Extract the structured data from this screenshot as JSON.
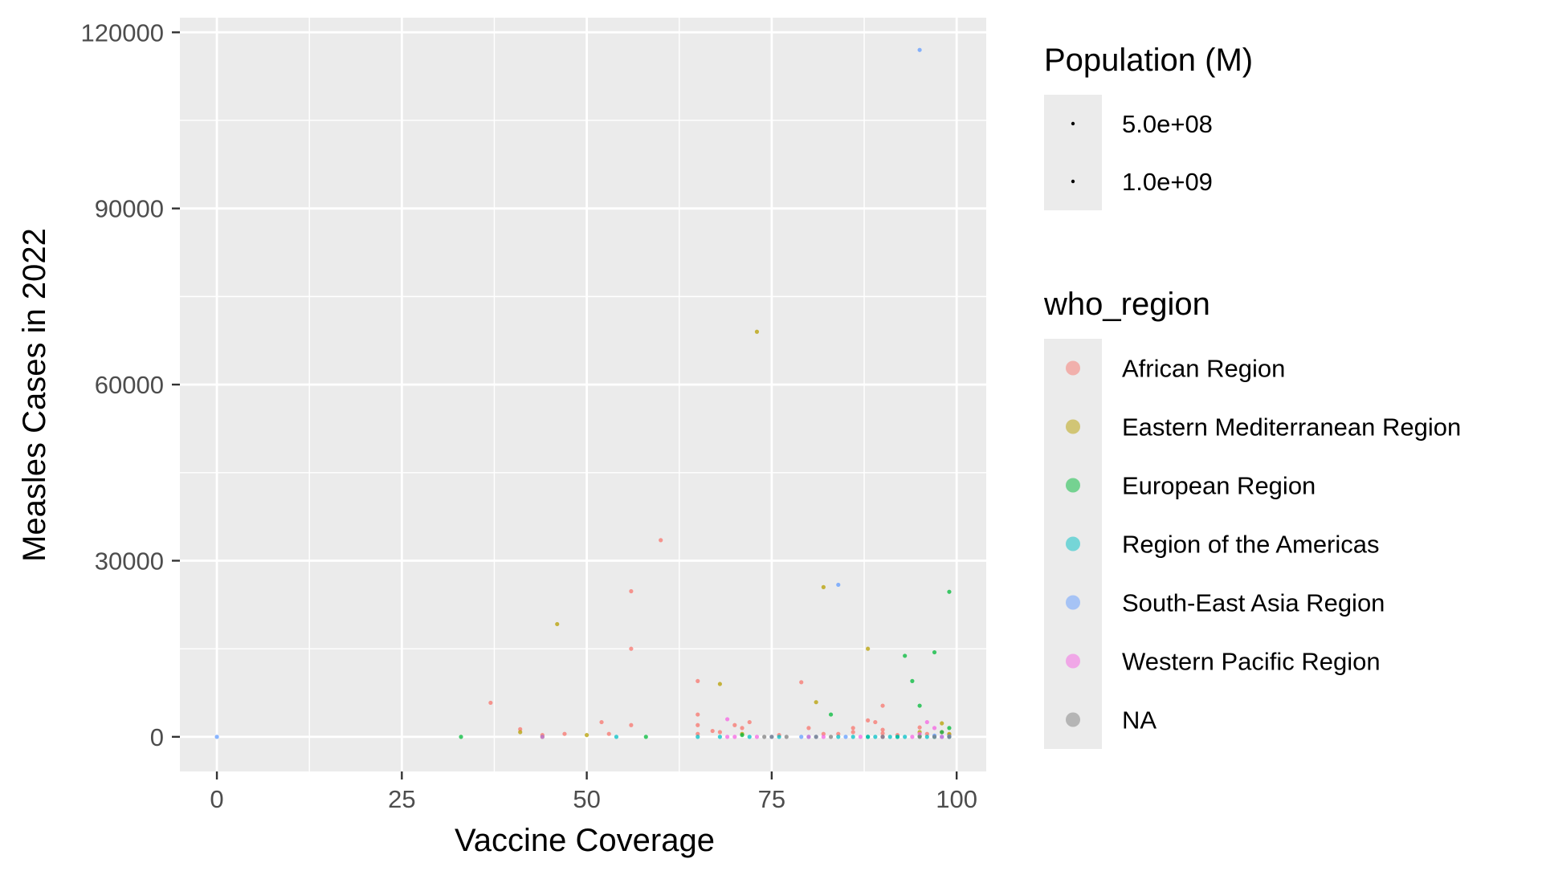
{
  "chart_data": {
    "type": "scatter",
    "title": "",
    "xlabel": "Vaccine Coverage",
    "ylabel": "Measles Cases in 2022",
    "xlim": [
      -5,
      104
    ],
    "ylim": [
      -5900,
      122500
    ],
    "x_ticks": [
      0,
      25,
      50,
      75,
      100
    ],
    "y_ticks": [
      0,
      30000,
      60000,
      90000,
      120000
    ],
    "grid": true,
    "legend_placement": "right",
    "size_legend": {
      "title": "Population (M)",
      "entries": [
        "5.0e+08",
        "1.0e+09"
      ]
    },
    "color_legend": {
      "title": "who_region",
      "entries": [
        {
          "label": "African Region",
          "color": "#F8766D"
        },
        {
          "label": "Eastern Mediterranean Region",
          "color": "#B79F00"
        },
        {
          "label": "European Region",
          "color": "#00BA38"
        },
        {
          "label": "Region of the Americas",
          "color": "#00BFC4"
        },
        {
          "label": "South-East Asia Region",
          "color": "#619CFF"
        },
        {
          "label": "Western Pacific Region",
          "color": "#F564E3"
        },
        {
          "label": "NA",
          "color": "#7F7F7F"
        }
      ]
    },
    "series": [
      {
        "region": "African Region",
        "points": [
          [
            37,
            5800
          ],
          [
            41,
            1300
          ],
          [
            44,
            300
          ],
          [
            47,
            500
          ],
          [
            52,
            2500
          ],
          [
            53,
            500
          ],
          [
            56,
            15000
          ],
          [
            56,
            24800
          ],
          [
            56,
            2000
          ],
          [
            60,
            33500
          ],
          [
            65,
            9500
          ],
          [
            65,
            3800
          ],
          [
            65,
            2000
          ],
          [
            65,
            500
          ],
          [
            67,
            1000
          ],
          [
            68,
            800
          ],
          [
            70,
            2000
          ],
          [
            71,
            1500
          ],
          [
            72,
            2500
          ],
          [
            76,
            300
          ],
          [
            79,
            9300
          ],
          [
            80,
            1500
          ],
          [
            82,
            500
          ],
          [
            84,
            500
          ],
          [
            86,
            1500
          ],
          [
            86,
            800
          ],
          [
            88,
            2800
          ],
          [
            89,
            2500
          ],
          [
            90,
            5300
          ],
          [
            90,
            1200
          ],
          [
            90,
            600
          ],
          [
            92,
            300
          ],
          [
            95,
            1600
          ],
          [
            96,
            500
          ],
          [
            98,
            800
          ],
          [
            99,
            300
          ]
        ]
      },
      {
        "region": "Eastern Mediterranean Region",
        "points": [
          [
            41,
            800
          ],
          [
            46,
            19200
          ],
          [
            50,
            300
          ],
          [
            68,
            9000
          ],
          [
            71,
            500
          ],
          [
            73,
            69000
          ],
          [
            81,
            5900
          ],
          [
            82,
            25500
          ],
          [
            88,
            15000
          ],
          [
            95,
            800
          ],
          [
            98,
            2300
          ],
          [
            99,
            500
          ]
        ]
      },
      {
        "region": "European Region",
        "points": [
          [
            33,
            0
          ],
          [
            44,
            0
          ],
          [
            58,
            0
          ],
          [
            71,
            300
          ],
          [
            83,
            3800
          ],
          [
            88,
            0
          ],
          [
            93,
            13800
          ],
          [
            94,
            9500
          ],
          [
            95,
            5300
          ],
          [
            97,
            14400
          ],
          [
            98,
            800
          ],
          [
            99,
            24700
          ],
          [
            99,
            1500
          ],
          [
            95,
            100
          ],
          [
            92,
            0
          ],
          [
            90,
            0
          ]
        ]
      },
      {
        "region": "Region of the Americas",
        "points": [
          [
            54,
            0
          ],
          [
            65,
            0
          ],
          [
            68,
            0
          ],
          [
            72,
            0
          ],
          [
            76,
            0
          ],
          [
            80,
            0
          ],
          [
            84,
            0
          ],
          [
            86,
            0
          ],
          [
            88,
            0
          ],
          [
            89,
            0
          ],
          [
            91,
            0
          ],
          [
            92,
            0
          ],
          [
            93,
            0
          ],
          [
            96,
            0
          ],
          [
            97,
            0
          ],
          [
            98,
            0
          ],
          [
            99,
            0
          ]
        ]
      },
      {
        "region": "South-East Asia Region",
        "points": [
          [
            0,
            0
          ],
          [
            75,
            0
          ],
          [
            79,
            0
          ],
          [
            81,
            0
          ],
          [
            84,
            25900
          ],
          [
            85,
            0
          ],
          [
            95,
            117000
          ],
          [
            97,
            200
          ],
          [
            99,
            100
          ]
        ]
      },
      {
        "region": "Western Pacific Region",
        "points": [
          [
            44,
            0
          ],
          [
            69,
            3000
          ],
          [
            69,
            0
          ],
          [
            70,
            0
          ],
          [
            73,
            0
          ],
          [
            80,
            0
          ],
          [
            82,
            0
          ],
          [
            87,
            0
          ],
          [
            90,
            0
          ],
          [
            94,
            0
          ],
          [
            95,
            500
          ],
          [
            96,
            2500
          ],
          [
            97,
            1500
          ],
          [
            98,
            0
          ]
        ]
      },
      {
        "region": "NA",
        "points": [
          [
            74,
            0
          ],
          [
            75,
            0
          ],
          [
            77,
            0
          ],
          [
            81,
            0
          ],
          [
            83,
            0
          ],
          [
            90,
            0
          ],
          [
            95,
            0
          ],
          [
            97,
            0
          ],
          [
            99,
            0
          ]
        ]
      }
    ]
  }
}
